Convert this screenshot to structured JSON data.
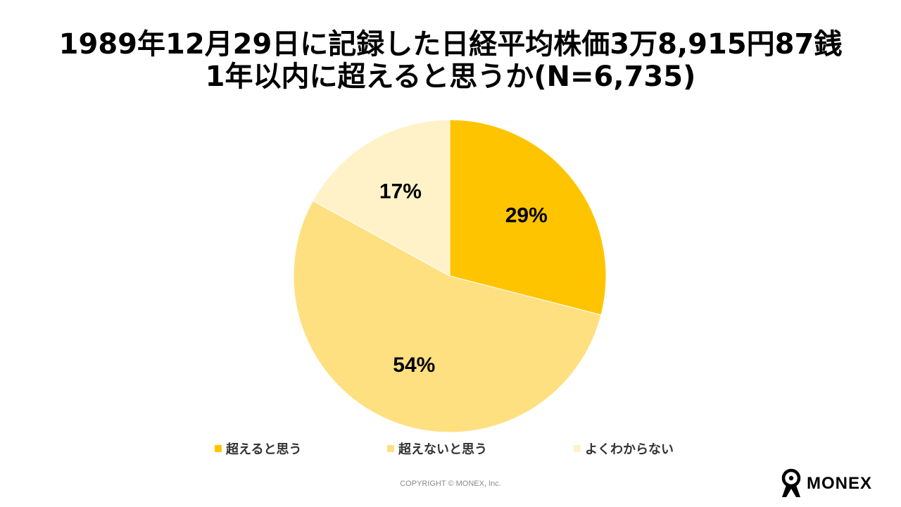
{
  "title_line1": "1989年12月29日に記録した日経平均株価3万8,915円87銭",
  "title_line2": "1年以内に超えると思うか(N=6,735)",
  "chart_data": {
    "type": "pie",
    "title": "1989年12月29日に記録した日経平均株価3万8,915円87銭 1年以内に超えると思うか(N=6,735)",
    "categories": [
      "超えると思う",
      "超えないと思う",
      "よくわからない"
    ],
    "values": [
      29,
      54,
      17
    ],
    "labels": [
      "29%",
      "54%",
      "17%"
    ],
    "colors": [
      "#FFC400",
      "#FFE080",
      "#FFF2C8"
    ],
    "legend_position": "bottom"
  },
  "footer": "COPYRIGHT © MONEX, Inc.",
  "logo_text": "MONEX"
}
